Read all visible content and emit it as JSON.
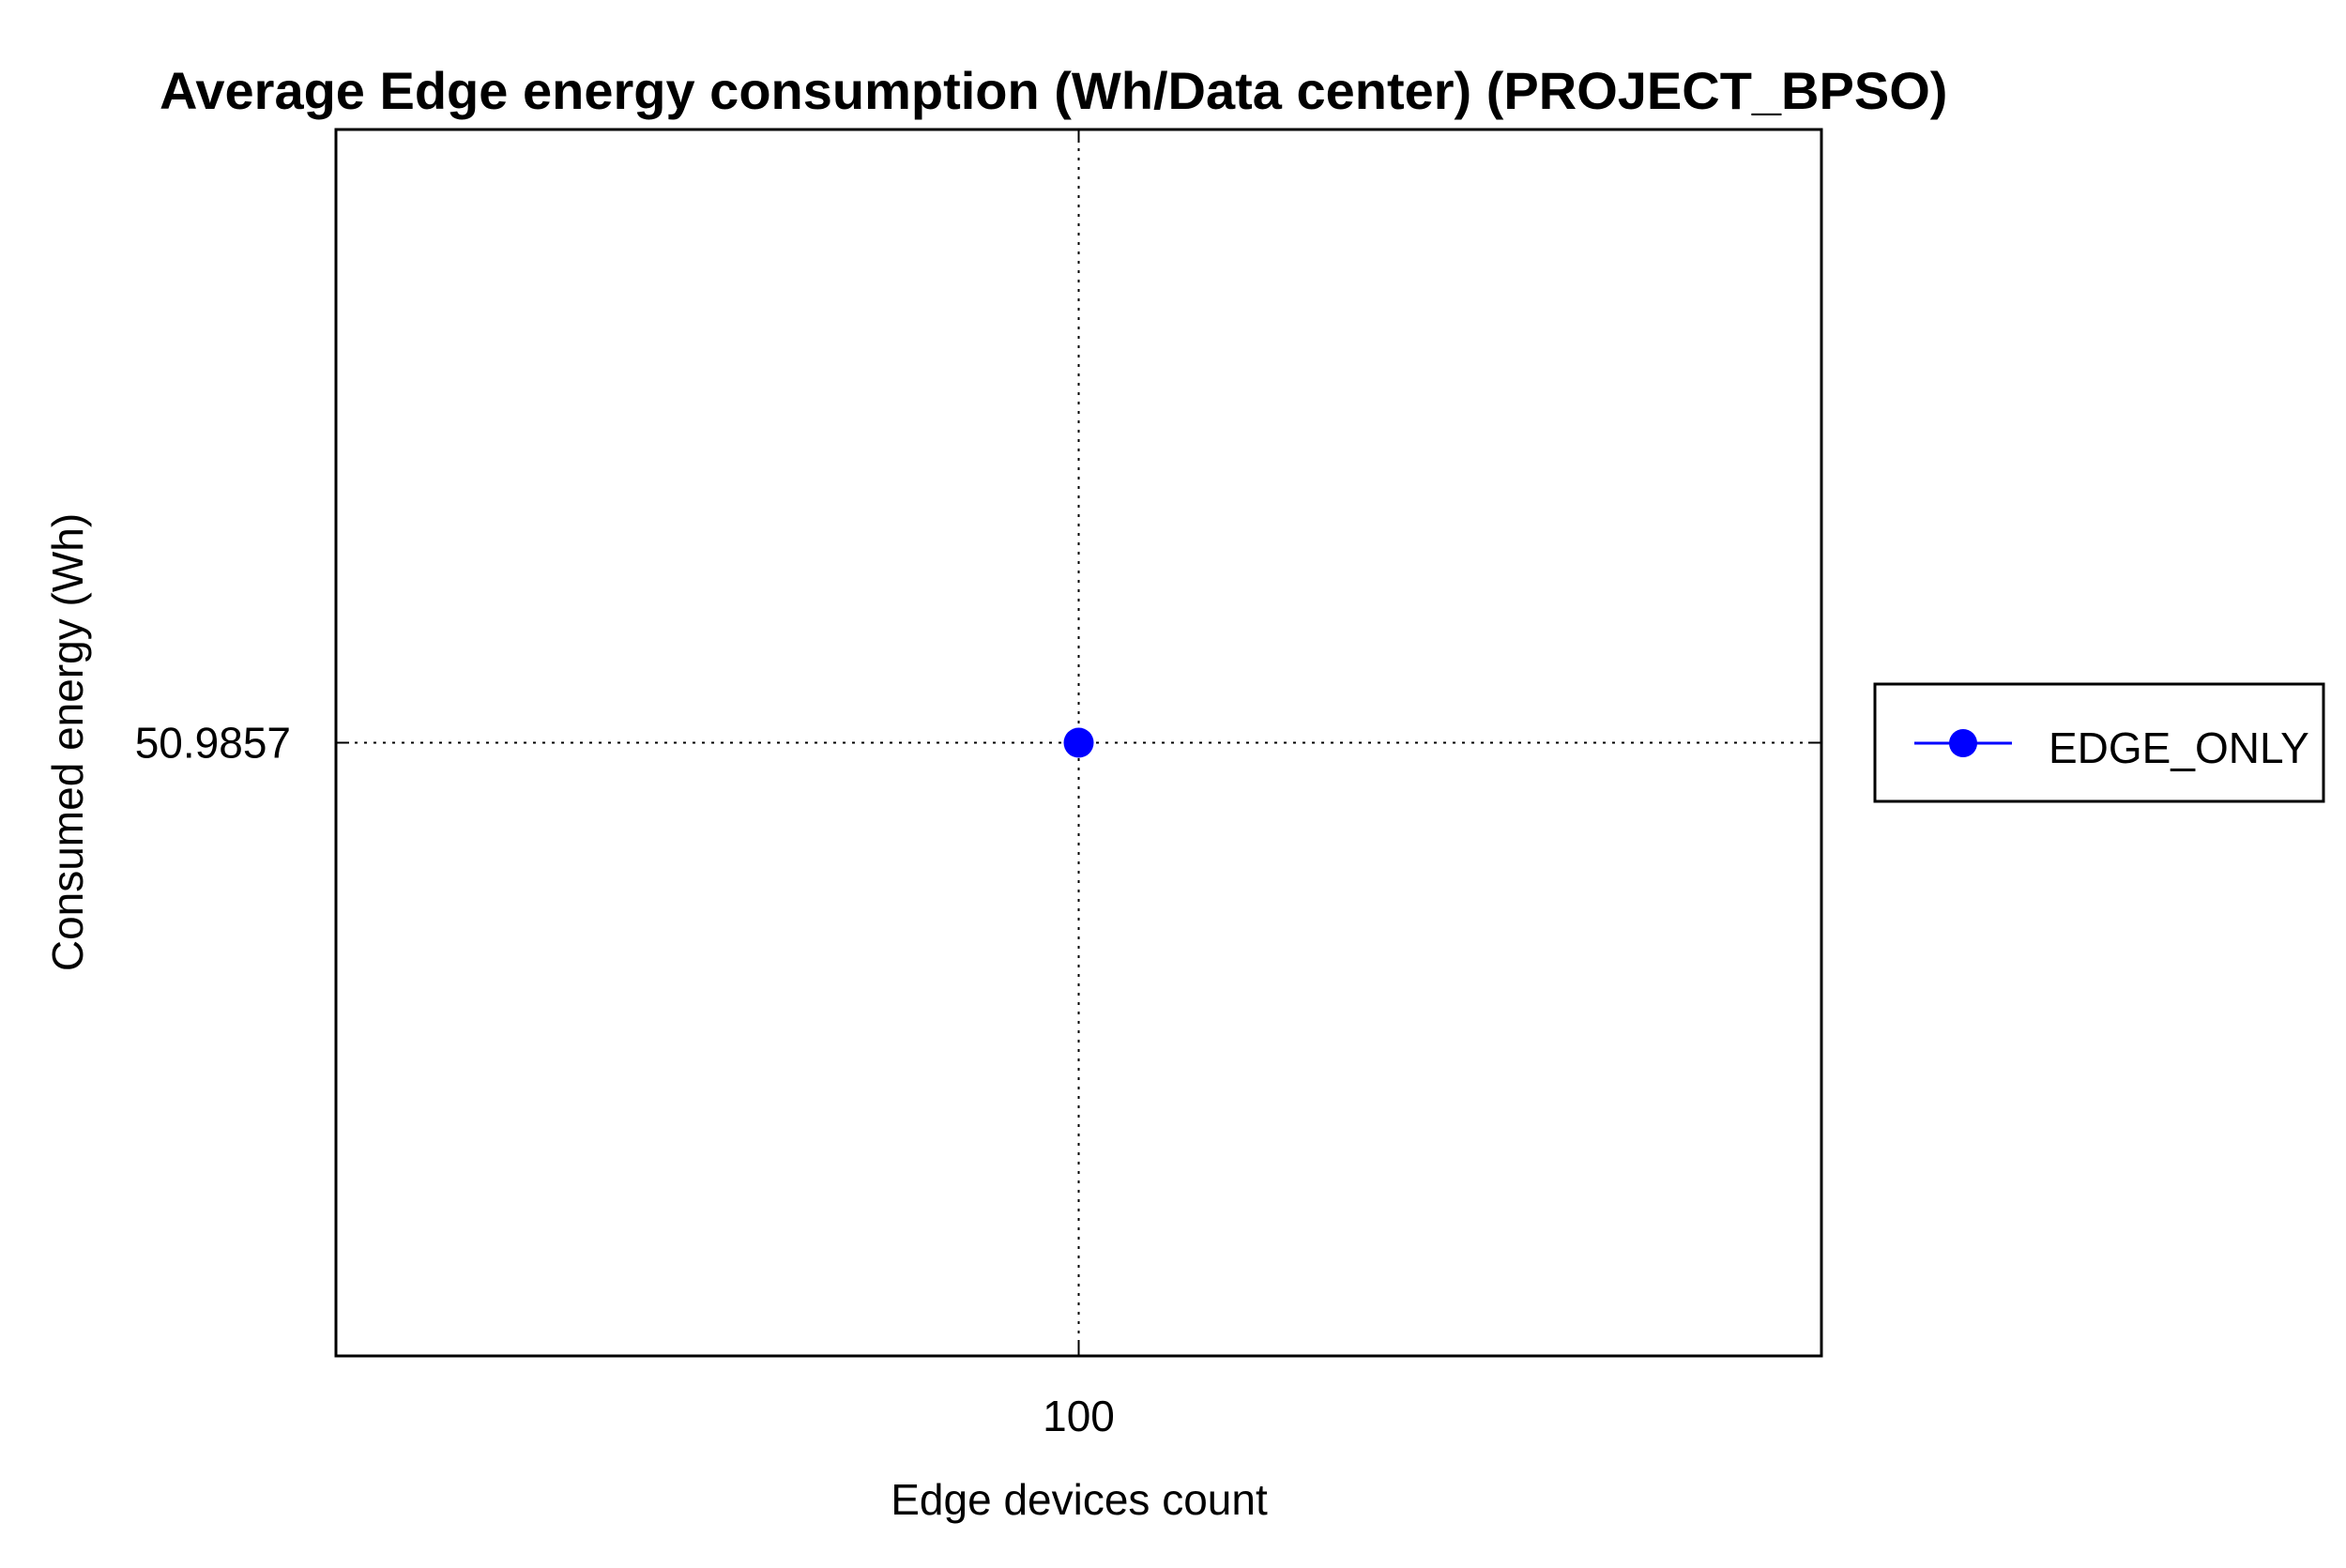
{
  "chart_data": {
    "type": "line",
    "title": "Average Edge energy consumption (Wh/Data center) (PROJECT_BPSO)",
    "xlabel": "Edge devices count",
    "ylabel": "Consumed energy (Wh)",
    "x_ticks": [
      "100"
    ],
    "y_ticks": [
      "50.9857"
    ],
    "x": [
      100
    ],
    "xlim": [
      99,
      101
    ],
    "ylim": [
      50.9847,
      50.9867
    ],
    "grid": true,
    "legend_position": "right",
    "series": [
      {
        "name": "EDGE_ONLY",
        "x": [
          100
        ],
        "values": [
          50.9857
        ],
        "color": "#0000ff",
        "marker": "circle"
      }
    ]
  }
}
